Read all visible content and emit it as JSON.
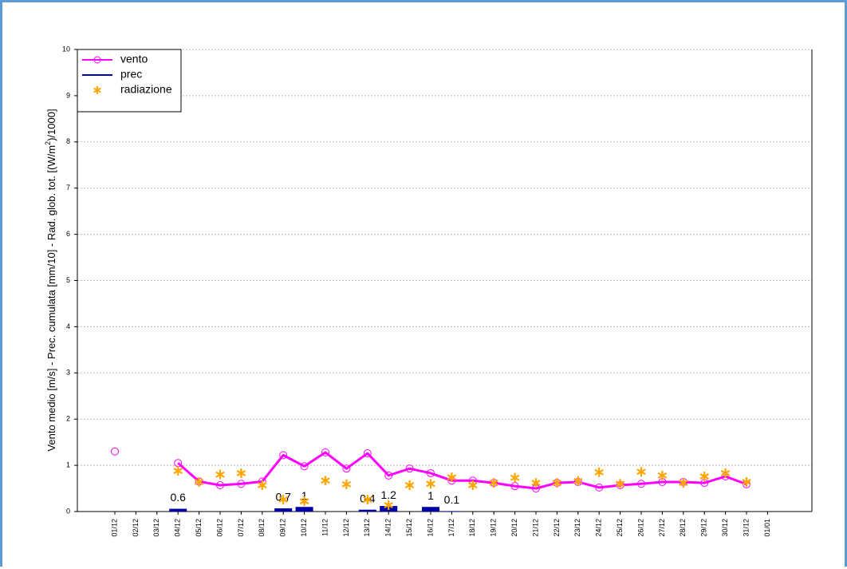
{
  "chart_data": {
    "type": "combo",
    "y_label": [
      "Vento medio [m/s] - Prec. cumulata [mm/10] - Rad. glob. tot. [(W/m",
      "2",
      ")/1000]"
    ],
    "categories": [
      "01/12",
      "02/12",
      "03/12",
      "04/12",
      "05/12",
      "06/12",
      "07/12",
      "08/12",
      "09/12",
      "10/12",
      "11/12",
      "12/12",
      "13/12",
      "14/12",
      "15/12",
      "16/12",
      "17/12",
      "18/12",
      "19/12",
      "20/12",
      "21/12",
      "22/12",
      "23/12",
      "24/12",
      "25/12",
      "26/12",
      "27/12",
      "28/12",
      "29/12",
      "30/12",
      "31/12",
      "01/01"
    ],
    "ylim": [
      0,
      10
    ],
    "yticks": [
      0,
      1,
      2,
      3,
      4,
      5,
      6,
      7,
      8,
      9,
      10
    ],
    "grid": true,
    "legend": "upper left",
    "series": [
      {
        "name": "vento",
        "kind": "line",
        "color": "#ff00ff",
        "values": [
          1.3,
          null,
          null,
          1.05,
          0.65,
          0.57,
          0.6,
          0.65,
          1.22,
          0.98,
          1.28,
          0.93,
          1.26,
          0.78,
          0.93,
          0.83,
          0.67,
          0.67,
          0.62,
          0.55,
          0.5,
          0.62,
          0.64,
          0.52,
          0.57,
          0.6,
          0.64,
          0.64,
          0.62,
          0.76,
          0.59,
          null
        ]
      },
      {
        "name": "prec",
        "kind": "bar",
        "color": "#0000aa",
        "values": [
          null,
          null,
          null,
          0.06,
          null,
          null,
          null,
          null,
          0.07,
          0.1,
          null,
          null,
          0.04,
          0.12,
          null,
          0.1,
          0.01,
          null,
          null,
          null,
          null,
          null,
          null,
          null,
          null,
          null,
          null,
          null,
          null,
          null,
          null,
          null
        ],
        "value_labels": [
          null,
          null,
          null,
          "0.6",
          null,
          null,
          null,
          null,
          "0.7",
          "1",
          null,
          null,
          "0.4",
          "1.2",
          null,
          "1",
          "0.1",
          null,
          null,
          null,
          null,
          null,
          null,
          null,
          null,
          null,
          null,
          null,
          null,
          null,
          null,
          null
        ]
      },
      {
        "name": "radiazione",
        "kind": "scatter",
        "color": "#ffa500",
        "values": [
          null,
          null,
          null,
          0.88,
          0.64,
          0.8,
          0.83,
          0.57,
          0.26,
          0.22,
          0.67,
          0.59,
          0.26,
          0.14,
          0.57,
          0.6,
          0.74,
          0.57,
          0.62,
          0.73,
          0.62,
          0.62,
          0.66,
          0.85,
          0.6,
          0.86,
          0.78,
          0.62,
          0.76,
          0.83,
          0.64,
          null
        ]
      }
    ]
  }
}
